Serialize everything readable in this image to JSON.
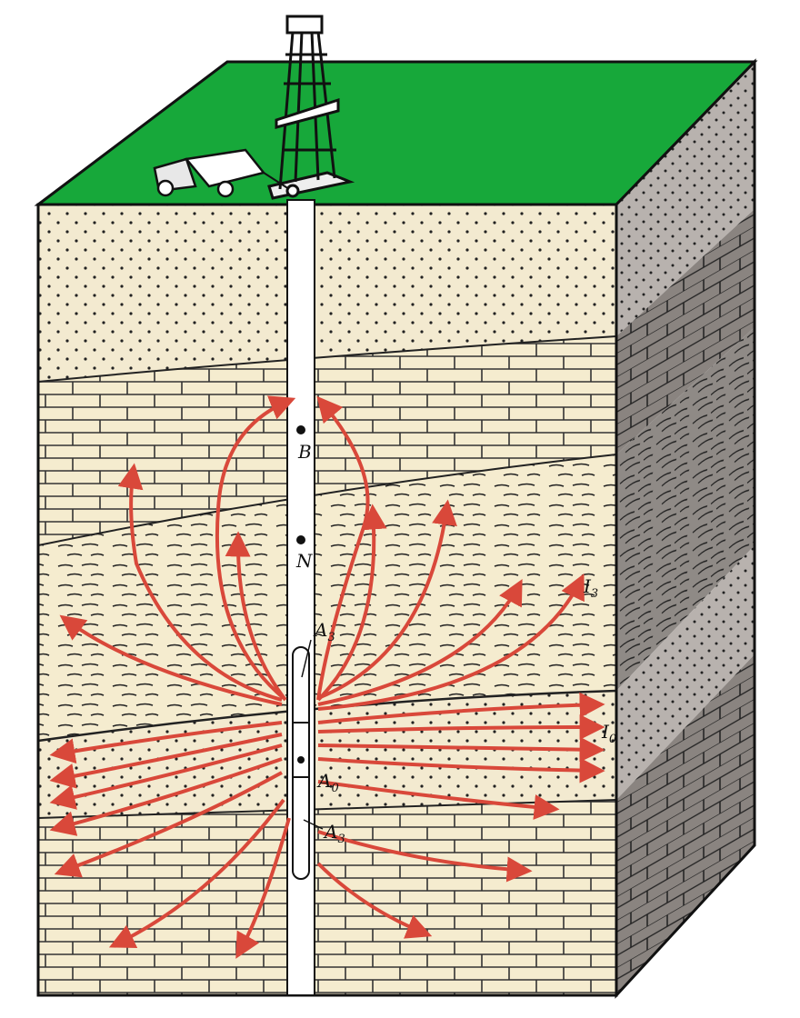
{
  "labels": {
    "b": "B",
    "n": "N",
    "a3_upper": "A",
    "a3_upper_sub": "3",
    "a0": "A",
    "a0_sub": "0",
    "a3_lower": "A",
    "a3_lower_sub": "3",
    "i3": "I",
    "i3_sub": "3",
    "i0": "I",
    "i0_sub": "0"
  },
  "colors": {
    "ground_surface": "#17a83a",
    "ground_surface_dark": "#0f7a2a",
    "rock_face": "#f3ead0",
    "rock_side": "#8f8a86",
    "current_lines": "#d9483a",
    "ink": "#111111"
  }
}
